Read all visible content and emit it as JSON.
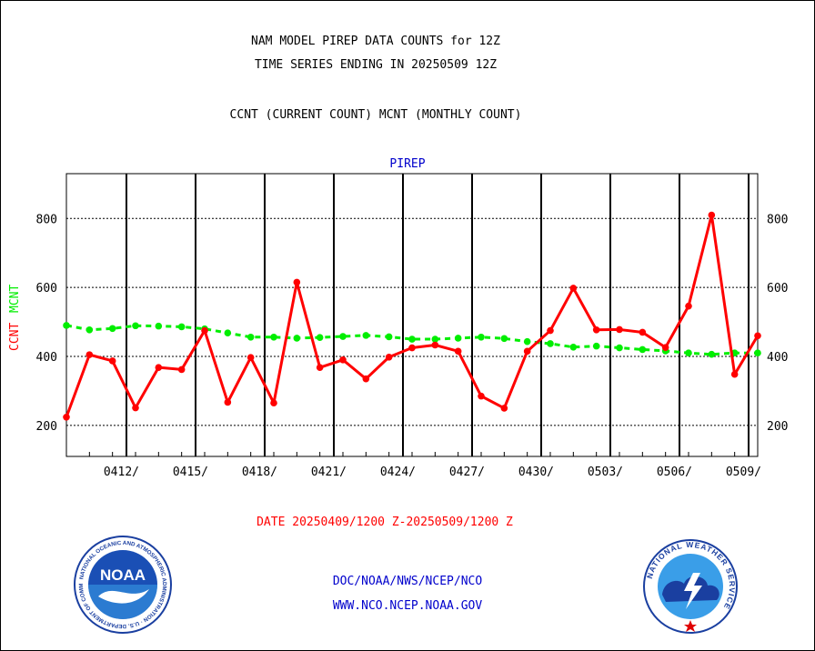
{
  "header": {
    "line1": "NAM MODEL PIREP DATA COUNTS for 12Z",
    "line2": "TIME SERIES ENDING IN 20250509 12Z",
    "line3": "CCNT (CURRENT COUNT) MCNT (MONTHLY COUNT)"
  },
  "chart_data": {
    "type": "line",
    "title": "PIREP",
    "ylabel_ccnt": "CCNT",
    "ylabel_mcnt": "MCNT",
    "xlabel": "DATE 20250409/1200 Z-20250509/1200 Z",
    "ylim": [
      110,
      930
    ],
    "yticks": [
      200,
      400,
      600,
      800
    ],
    "x_tick_labels": [
      "0412/",
      "0415/",
      "0418/",
      "0421/",
      "0424/",
      "0427/",
      "0430/",
      "0503/",
      "0506/",
      "0509/"
    ],
    "grid": true,
    "series": [
      {
        "name": "CCNT",
        "color": "#ff0000",
        "values": [
          224,
          405,
          387,
          251,
          368,
          362,
          475,
          267,
          397,
          265,
          615,
          368,
          390,
          335,
          398,
          425,
          433,
          415,
          285,
          250,
          415,
          475,
          598,
          477,
          478,
          470,
          426,
          546,
          810,
          348,
          460
        ]
      },
      {
        "name": "MCNT",
        "color": "#00ee00",
        "values": [
          490,
          477,
          481,
          489,
          488,
          486,
          480,
          468,
          456,
          456,
          453,
          455,
          458,
          461,
          457,
          450,
          450,
          453,
          456,
          452,
          443,
          437,
          427,
          430,
          425,
          420,
          416,
          410,
          406,
          410,
          410
        ]
      }
    ]
  },
  "footer": {
    "line1": "DOC/NOAA/NWS/NCEP/NCO",
    "line2": "WWW.NCO.NCEP.NOAA.GOV"
  },
  "colors": {
    "ccnt": "#ff0000",
    "mcnt": "#00ee00",
    "title": "#0000cc",
    "footer": "#0000cc",
    "date": "#ff0000"
  },
  "logos": {
    "noaa": "NOAA",
    "noaa_ring": "NATIONAL OCEANIC AND ATMOSPHERIC ADMINISTRATION · U.S. DEPARTMENT OF COMMERCE",
    "nws_ring": "NATIONAL WEATHER SERVICE"
  }
}
